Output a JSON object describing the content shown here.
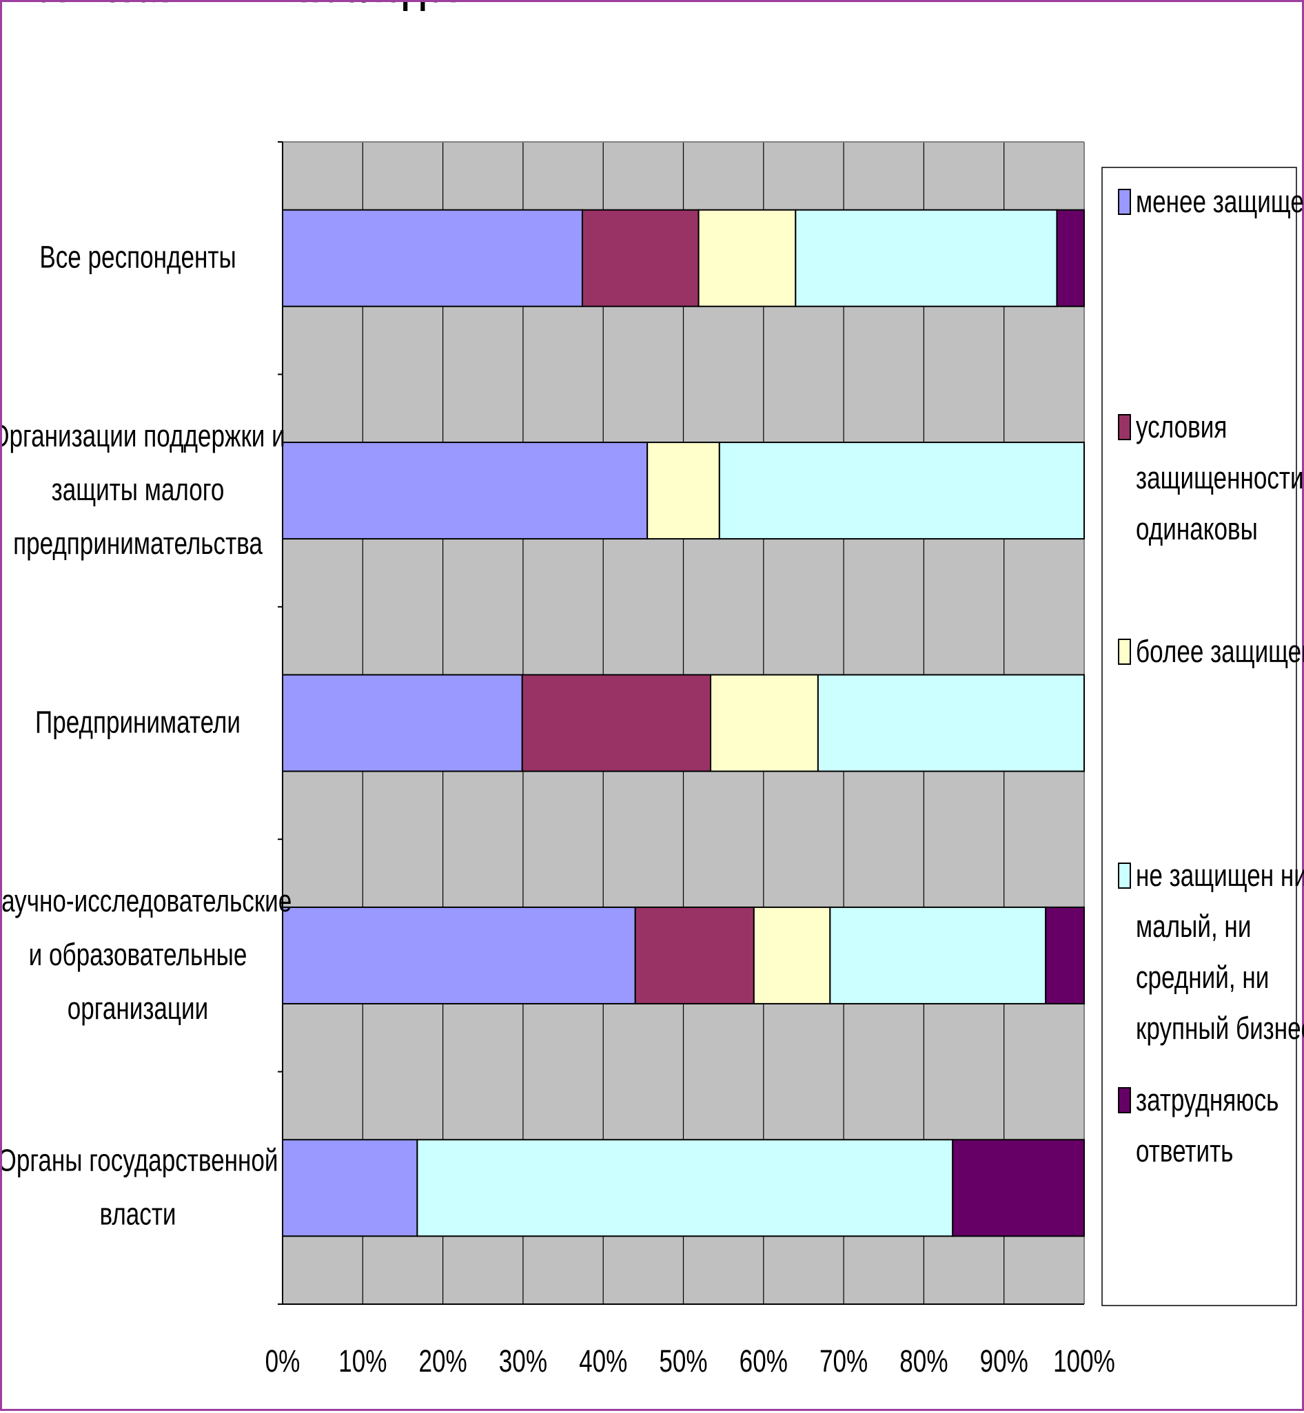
{
  "chart_data": {
    "type": "bar",
    "orientation": "horizontal",
    "stacked": "percent",
    "title": "Сравнительная защищенность от негативных последствий",
    "categories": [
      [
        "Все респонденты"
      ],
      [
        "Организации поддержки и",
        "защиты малого",
        "предпринимательства"
      ],
      [
        "Предприниматели"
      ],
      [
        "Научно-исследовательские",
        "и образовательные",
        "организации"
      ],
      [
        "Органы государственной",
        "власти"
      ]
    ],
    "series": [
      {
        "name": [
          "менее защищен"
        ],
        "color": "#9999ff",
        "values": [
          37.4,
          45.5,
          29.9,
          44.0,
          16.8
        ]
      },
      {
        "name": [
          "условия",
          "защищенности",
          "одинаковы"
        ],
        "color": "#993366",
        "values": [
          14.5,
          0,
          23.5,
          14.8,
          0
        ]
      },
      {
        "name": [
          "более защищен"
        ],
        "color": "#ffffcc",
        "values": [
          12.1,
          9.0,
          13.4,
          9.5,
          0
        ]
      },
      {
        "name": [
          "не защищен ни",
          "малый, ни",
          "средний, ни",
          "крупный бизнес"
        ],
        "color": "#ccffff",
        "values": [
          32.6,
          45.5,
          33.2,
          26.9,
          66.8
        ]
      },
      {
        "name": [
          "затрудняюсь",
          "ответить"
        ],
        "color": "#660066",
        "values": [
          3.4,
          0,
          0,
          4.8,
          16.4
        ]
      }
    ],
    "xlim": [
      0,
      100
    ],
    "x_ticks": [
      "0%",
      "10%",
      "20%",
      "30%",
      "40%",
      "50%",
      "60%",
      "70%",
      "80%",
      "90%",
      "100%"
    ],
    "grid": true,
    "plot_background": "#c0c0c0",
    "legend_position": "right"
  }
}
